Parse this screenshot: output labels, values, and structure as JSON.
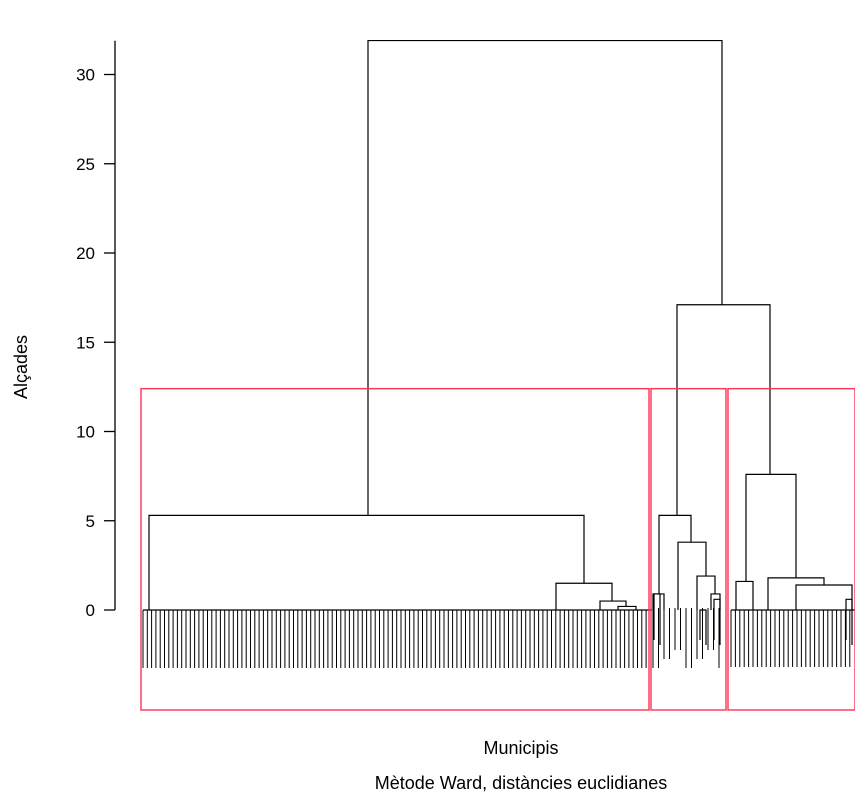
{
  "chart_data": {
    "type": "dendrogram",
    "method_caption": "Mètode Ward, distàncies euclidianes",
    "xlabel": "Municipis",
    "ylabel": "Alçades",
    "ylim": [
      -6,
      32
    ],
    "yticks": [
      0,
      5,
      10,
      15,
      20,
      25,
      30
    ],
    "grid": false,
    "root_height": 31.9,
    "merges": [
      {
        "node": "root",
        "height": 31.9,
        "children": [
          "A",
          "B"
        ]
      },
      {
        "node": "A",
        "height": 5.3,
        "children": [
          "A1",
          "A2"
        ]
      },
      {
        "node": "A2",
        "height": 1.5,
        "children": [
          "A2a",
          "A2b"
        ]
      },
      {
        "node": "A2b",
        "height": 0.5,
        "children": [
          "A2b1",
          "A2b2"
        ]
      },
      {
        "node": "A2b2",
        "height": 0.2,
        "children": [
          "A2b2a",
          "A2b2b"
        ]
      },
      {
        "node": "B",
        "height": 17.1,
        "children": [
          "B1",
          "B2"
        ]
      },
      {
        "node": "B1",
        "height": 5.3,
        "children": [
          "B1a",
          "B1b"
        ]
      },
      {
        "node": "B1a",
        "height": 0.9,
        "children": [
          "B1a1",
          "B1a2"
        ]
      },
      {
        "node": "B1b",
        "height": 3.8,
        "children": [
          "B1b1",
          "B1b2"
        ]
      },
      {
        "node": "B1b2",
        "height": 1.9,
        "children": [
          "B1b2a",
          "B1b2b"
        ]
      },
      {
        "node": "B1b2b",
        "height": 0.9,
        "children": [
          "B1b2b1",
          "B1b2b2"
        ]
      },
      {
        "node": "B2",
        "height": 7.6,
        "children": [
          "B2a",
          "B2b"
        ]
      },
      {
        "node": "B2a",
        "height": 1.6,
        "children": [
          "B2a1",
          "B2a2"
        ]
      },
      {
        "node": "B2b",
        "height": 1.8,
        "children": [
          "B2b1",
          "B2b2"
        ]
      },
      {
        "node": "B2b2",
        "height": 1.4,
        "children": [
          "B2b2a",
          "B2b2b"
        ]
      }
    ],
    "clusters": [
      {
        "id": 1,
        "cut_height": 12.4
      },
      {
        "id": 2,
        "cut_height": 12.4
      },
      {
        "id": 3,
        "cut_height": 12.4
      }
    ],
    "colors": {
      "tree": "#000000",
      "cluster_box": "#ff3355",
      "axis": "#000000"
    }
  }
}
